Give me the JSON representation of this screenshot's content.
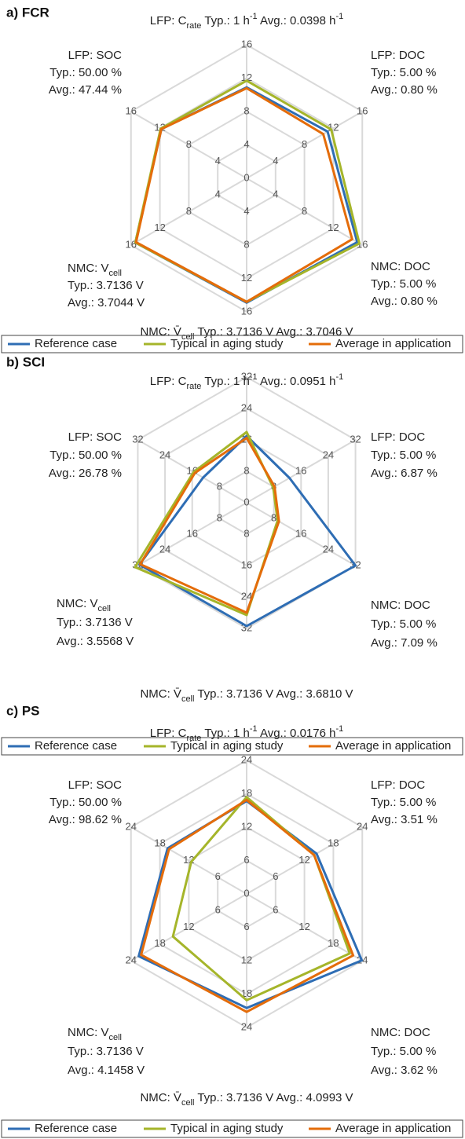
{
  "chart_data": [
    {
      "type": "radar",
      "title": "a) FCR",
      "rlim": [
        0,
        16
      ],
      "rticks": [
        0,
        4,
        8,
        12,
        16
      ],
      "grid": true,
      "legend": "bottom",
      "categories": [
        [
          [
            {
              "text": "LFP: C"
            },
            {
              "text": "rate",
              "sub": true
            },
            {
              "text": " Typ.: 1 h"
            },
            {
              "text": "-1",
              "sup": true
            },
            {
              "text": " Avg.: 0.0398 h"
            },
            {
              "text": "-1",
              "sup": true
            }
          ]
        ],
        [
          [
            {
              "text": "LFP: DOC"
            }
          ],
          [
            {
              "text": "Typ.: 5.00 %"
            }
          ],
          [
            {
              "text": "Avg.: 0.80 %"
            }
          ]
        ],
        [
          [
            {
              "text": "NMC: DOC"
            }
          ],
          [
            {
              "text": "Typ.: 5.00 %"
            }
          ],
          [
            {
              "text": "Avg.: 0.80 %"
            }
          ]
        ],
        [
          [
            {
              "text": "NMC: V̄"
            },
            {
              "text": "cell",
              "sub": true
            },
            {
              "text": " Typ.: 3.7136 V Avg.: 3.7046 V"
            }
          ]
        ],
        [
          [
            {
              "text": "NMC: V"
            },
            {
              "text": "cell",
              "sub": true
            }
          ],
          [
            {
              "text": "Typ.: 3.7136 V"
            }
          ],
          [
            {
              "text": "Avg.: 3.7044 V"
            }
          ]
        ],
        [
          [
            {
              "text": "LFP: SOC"
            }
          ],
          [
            {
              "text": "Typ.: 50.00 %"
            }
          ],
          [
            {
              "text": "Avg.: 47.44 %"
            }
          ]
        ]
      ],
      "series": [
        {
          "name": "Reference case",
          "color": "#2e6db4",
          "values": [
            10.9,
            11.2,
            15.3,
            14.9,
            15.4,
            11.8
          ]
        },
        {
          "name": "Typical in aging study",
          "color": "#a5b52a",
          "values": [
            11.7,
            11.7,
            15.6,
            14.8,
            15.4,
            11.9
          ]
        },
        {
          "name": "Average in application",
          "color": "#e46c0a",
          "values": [
            10.8,
            10.6,
            14.6,
            14.8,
            15.3,
            11.8
          ]
        }
      ]
    },
    {
      "type": "radar",
      "title": "b) SCI",
      "rlim": [
        0,
        32
      ],
      "rticks": [
        0,
        8,
        16,
        24,
        32
      ],
      "grid": true,
      "legend": "bottom",
      "categories": [
        [
          [
            {
              "text": "LFP: C"
            },
            {
              "text": "rate",
              "sub": true
            },
            {
              "text": " Typ.: 1 h"
            },
            {
              "text": "-1",
              "sup": true
            },
            {
              "text": " Avg.: 0.0951 h"
            },
            {
              "text": "-1",
              "sup": true
            }
          ]
        ],
        [
          [
            {
              "text": "LFP: DOC"
            }
          ],
          [
            {
              "text": "Typ.: 5.00 %"
            }
          ],
          [
            {
              "text": "Avg.: 6.87 %"
            }
          ]
        ],
        [
          [
            {
              "text": "NMC: DOC"
            }
          ],
          [
            {
              "text": "Typ.: 5.00 %"
            }
          ],
          [
            {
              "text": "Avg.: 7.09 %"
            }
          ]
        ],
        [
          [
            {
              "text": "NMC: V̄"
            },
            {
              "text": "cell",
              "sub": true
            },
            {
              "text": " Typ.: 3.7136 V Avg.: 3.6810 V"
            }
          ]
        ],
        [
          [
            {
              "text": "NMC: V"
            },
            {
              "text": "cell",
              "sub": true
            }
          ],
          [
            {
              "text": "Typ.: 3.7136 V"
            }
          ],
          [
            {
              "text": "Avg.: 3.5568 V"
            }
          ]
        ],
        [
          [
            {
              "text": "LFP: SOC"
            }
          ],
          [
            {
              "text": "Typ.: 50.00 %"
            }
          ],
          [
            {
              "text": "Avg.: 26.78 %"
            }
          ]
        ]
      ],
      "series": [
        {
          "name": "Reference case",
          "color": "#2e6db4",
          "values": [
            17,
            12.6,
            32,
            31.4,
            31.5,
            12.8
          ]
        },
        {
          "name": "Typical in aging study",
          "color": "#a5b52a",
          "values": [
            18,
            7.8,
            9.1,
            28.6,
            32.8,
            15.6
          ]
        },
        {
          "name": "Average in application",
          "color": "#e46c0a",
          "values": [
            16.5,
            8.2,
            9.5,
            28,
            31.3,
            15.2
          ]
        }
      ]
    },
    {
      "type": "radar",
      "title": "c) PS",
      "rlim": [
        0,
        24
      ],
      "rticks": [
        0,
        6,
        12,
        18,
        24
      ],
      "grid": true,
      "legend": "bottom",
      "categories": [
        [
          [
            {
              "text": "LFP: C"
            },
            {
              "text": "rate",
              "sub": true
            },
            {
              "text": " Typ.: 1 h"
            },
            {
              "text": "-1",
              "sup": true
            },
            {
              "text": " Avg.: 0.0176 h"
            },
            {
              "text": "-1",
              "sup": true
            }
          ]
        ],
        [
          [
            {
              "text": "LFP: DOC"
            }
          ],
          [
            {
              "text": "Typ.: 5.00 %"
            }
          ],
          [
            {
              "text": "Avg.: 3.51 %"
            }
          ]
        ],
        [
          [
            {
              "text": "NMC: DOC"
            }
          ],
          [
            {
              "text": "Typ.: 5.00 %"
            }
          ],
          [
            {
              "text": "Avg.: 3.62 %"
            }
          ]
        ],
        [
          [
            {
              "text": "NMC: V̄"
            },
            {
              "text": "cell",
              "sub": true
            },
            {
              "text": " Typ.: 3.7136 V Avg.: 4.0993 V"
            }
          ]
        ],
        [
          [
            {
              "text": "NMC: V"
            },
            {
              "text": "cell",
              "sub": true
            }
          ],
          [
            {
              "text": "Typ.: 3.7136 V"
            }
          ],
          [
            {
              "text": "Avg.: 4.1458 V"
            }
          ]
        ],
        [
          [
            {
              "text": "LFP: SOC"
            }
          ],
          [
            {
              "text": "Typ.: 50.00 %"
            }
          ],
          [
            {
              "text": "Avg.: 98.62 %"
            }
          ]
        ]
      ],
      "series": [
        {
          "name": "Reference case",
          "color": "#2e6db4",
          "values": [
            16.7,
            14.5,
            23.9,
            20.5,
            22.4,
            16.4
          ]
        },
        {
          "name": "Typical in aging study",
          "color": "#a5b52a",
          "values": [
            17.4,
            14.0,
            21.4,
            19.1,
            15.3,
            11.5
          ]
        },
        {
          "name": "Average in application",
          "color": "#e46c0a",
          "values": [
            16.9,
            14.0,
            22.1,
            21.2,
            21.9,
            16.1
          ]
        }
      ]
    }
  ]
}
